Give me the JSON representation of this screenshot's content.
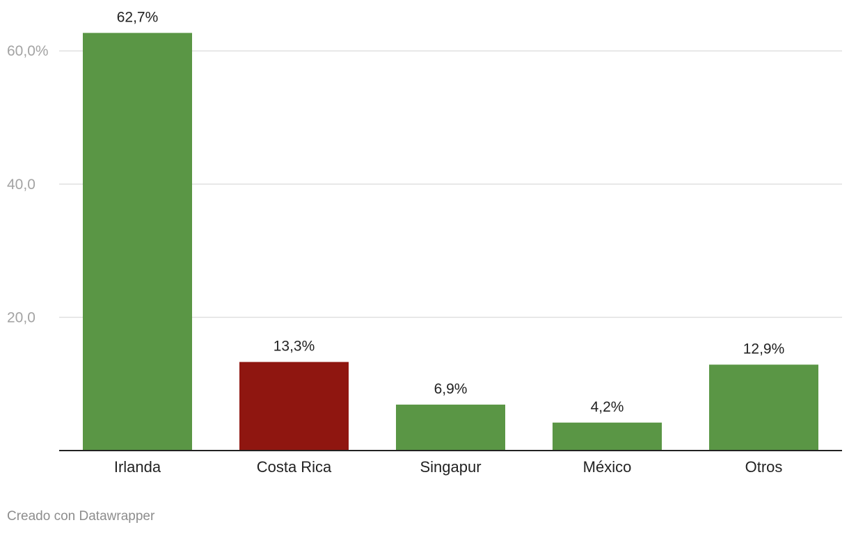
{
  "chart_data": {
    "type": "bar",
    "categories": [
      "Irlanda",
      "Costa Rica",
      "Singapur",
      "México",
      "Otros"
    ],
    "values": [
      62.7,
      13.3,
      6.9,
      4.2,
      12.9
    ],
    "value_labels": [
      "62,7%",
      "13,3%",
      "6,9%",
      "4,2%",
      "12,9%"
    ],
    "bar_colors": [
      "#5a9645",
      "#8f1610",
      "#5a9645",
      "#5a9645",
      "#5a9645"
    ],
    "yticks": [
      20,
      40,
      60
    ],
    "ytick_labels": [
      "20,0",
      "40,0",
      "60,0%"
    ],
    "ylim": [
      0,
      65
    ],
    "grid": true,
    "title": "",
    "xlabel": "",
    "ylabel": ""
  },
  "footer": {
    "credit": "Creado con Datawrapper"
  },
  "colors": {
    "highlight": "#8f1610",
    "default_bar": "#5a9645",
    "gridline": "#e0e0e0",
    "axis": "#222222",
    "tick_text": "#a3a3a3"
  }
}
